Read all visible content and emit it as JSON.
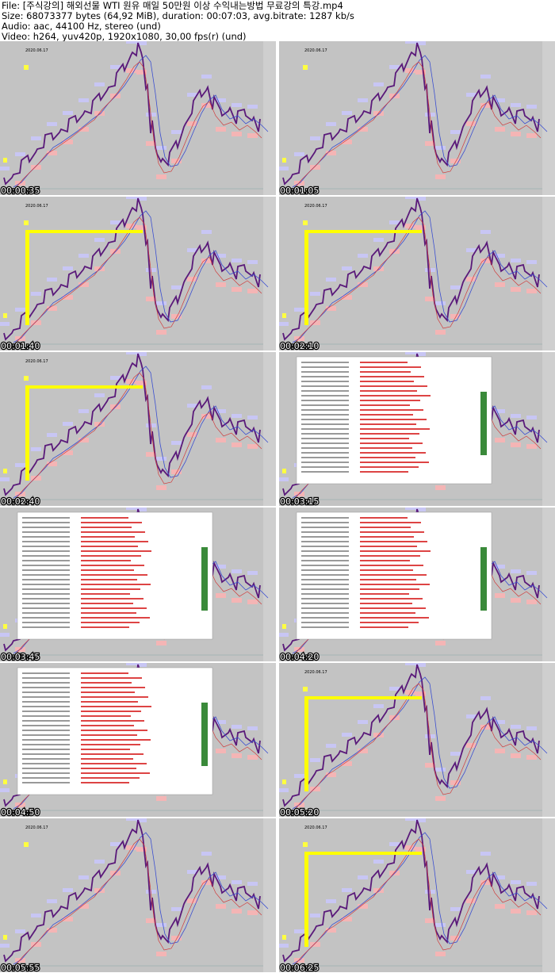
{
  "header": {
    "lines": [
      "File: [주식강의] 해외선물 WTI 원유 매일 50만원 이상 수익내는방법 무료강의 특강.mp4",
      "Size: 68073377 bytes (64,92 MiB), duration: 00:07:03, avg.bitrate: 1287 kb/s",
      "Audio: aac, 44100 Hz, stereo (und)",
      "Video: h264, yuv420p, 1920x1080, 30,00 fps(r) (und)"
    ]
  },
  "thumbnail_caption": "2020.06.17",
  "thumbnails": [
    {
      "timestamp": "00:00:35"
    },
    {
      "timestamp": "00:01:05"
    },
    {
      "timestamp": "00:01:40"
    },
    {
      "timestamp": "00:02:10"
    },
    {
      "timestamp": "00:02:40"
    },
    {
      "timestamp": "00:03:15"
    },
    {
      "timestamp": "00:03:45"
    },
    {
      "timestamp": "00:04:20"
    },
    {
      "timestamp": "00:04:50"
    },
    {
      "timestamp": "00:05:20"
    },
    {
      "timestamp": "00:05:55"
    },
    {
      "timestamp": "00:06:25"
    }
  ]
}
